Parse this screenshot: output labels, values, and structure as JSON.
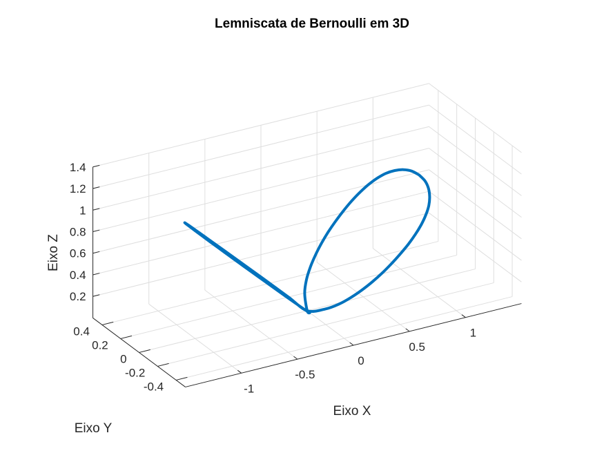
{
  "chart_data": {
    "type": "line",
    "title": "Lemniscata de Bernoulli em 3D",
    "xlabel": "Eixo X",
    "ylabel": "Eixo Y",
    "zlabel": "Eixo Z",
    "xlim": [
      -1.5,
      1.5
    ],
    "ylim": [
      -0.5,
      0.5
    ],
    "zlim": [
      0,
      1.4
    ],
    "xticks": [
      -1,
      -0.5,
      0,
      0.5,
      1
    ],
    "xtick_labels": [
      "-1",
      "-0.5",
      "0",
      "0.5",
      "1"
    ],
    "yticks": [
      -0.4,
      -0.2,
      0,
      0.2,
      0.4
    ],
    "ytick_labels": [
      "-0.4",
      "-0.2",
      "0",
      "0.2",
      "0.4"
    ],
    "zticks": [
      0.2,
      0.4,
      0.6,
      0.8,
      1,
      1.2,
      1.4
    ],
    "ztick_labels": [
      "0.2",
      "0.4",
      "0.6",
      "0.8",
      "1",
      "1.2",
      "1.4"
    ],
    "grid": true,
    "series": [
      {
        "color": "#0072bd",
        "points": [
          [
            1.0,
            0.0,
            1.0
          ],
          [
            0.993,
            0.071,
            0.993
          ],
          [
            0.971,
            0.135,
            0.971
          ],
          [
            0.937,
            0.189,
            0.937
          ],
          [
            0.893,
            0.233,
            0.893
          ],
          [
            0.84,
            0.265,
            0.84
          ],
          [
            0.78,
            0.288,
            0.78
          ],
          [
            0.715,
            0.302,
            0.715
          ],
          [
            0.646,
            0.309,
            0.646
          ],
          [
            0.575,
            0.309,
            0.575
          ],
          [
            0.502,
            0.304,
            0.502
          ],
          [
            0.429,
            0.294,
            0.429
          ],
          [
            0.356,
            0.277,
            0.356
          ],
          [
            0.284,
            0.253,
            0.284
          ],
          [
            0.212,
            0.221,
            0.212
          ],
          [
            0.14,
            0.177,
            0.14
          ],
          [
            0.07,
            0.112,
            0.07
          ],
          [
            0.0,
            0.0,
            0.0
          ],
          [
            -0.07,
            -0.112,
            0.07
          ],
          [
            -0.14,
            -0.177,
            0.14
          ],
          [
            -0.212,
            -0.221,
            0.212
          ],
          [
            -0.284,
            -0.253,
            0.284
          ],
          [
            -0.356,
            -0.277,
            0.356
          ],
          [
            -0.429,
            -0.294,
            0.429
          ],
          [
            -0.502,
            -0.304,
            0.502
          ],
          [
            -0.575,
            -0.309,
            0.575
          ],
          [
            -0.646,
            -0.309,
            0.646
          ],
          [
            -0.715,
            -0.302,
            0.715
          ],
          [
            -0.78,
            -0.288,
            0.78
          ],
          [
            -0.84,
            -0.265,
            0.84
          ],
          [
            -0.893,
            -0.233,
            0.893
          ],
          [
            -0.937,
            -0.189,
            0.937
          ],
          [
            -0.971,
            -0.135,
            0.971
          ],
          [
            -0.993,
            -0.071,
            0.993
          ],
          [
            -1.0,
            0.0,
            1.0
          ],
          [
            -0.993,
            0.071,
            0.993
          ],
          [
            -0.971,
            0.135,
            0.971
          ],
          [
            -0.937,
            0.189,
            0.937
          ],
          [
            -0.893,
            0.233,
            0.893
          ],
          [
            -0.84,
            0.265,
            0.84
          ],
          [
            -0.78,
            0.288,
            0.78
          ],
          [
            -0.715,
            0.302,
            0.715
          ],
          [
            -0.646,
            0.309,
            0.646
          ],
          [
            -0.575,
            0.309,
            0.575
          ],
          [
            -0.502,
            0.304,
            0.502
          ],
          [
            -0.429,
            0.294,
            0.429
          ],
          [
            -0.356,
            0.277,
            0.356
          ],
          [
            -0.284,
            0.253,
            0.284
          ],
          [
            -0.212,
            0.221,
            0.212
          ],
          [
            -0.14,
            0.177,
            0.14
          ],
          [
            -0.07,
            0.112,
            0.07
          ],
          [
            0.0,
            0.0,
            0.0
          ],
          [
            0.07,
            -0.112,
            0.07
          ],
          [
            0.14,
            -0.177,
            0.14
          ],
          [
            0.212,
            -0.221,
            0.212
          ],
          [
            0.284,
            -0.253,
            0.284
          ],
          [
            0.356,
            -0.277,
            0.356
          ],
          [
            0.429,
            -0.294,
            0.429
          ],
          [
            0.502,
            -0.304,
            0.502
          ],
          [
            0.575,
            -0.309,
            0.575
          ],
          [
            0.646,
            -0.309,
            0.646
          ],
          [
            0.715,
            -0.302,
            0.715
          ],
          [
            0.78,
            -0.288,
            0.78
          ],
          [
            0.84,
            -0.265,
            0.84
          ],
          [
            0.893,
            -0.233,
            0.893
          ],
          [
            0.937,
            -0.189,
            0.937
          ],
          [
            0.971,
            -0.135,
            0.971
          ],
          [
            0.993,
            -0.071,
            0.993
          ],
          [
            1.0,
            0.0,
            1.0
          ]
        ]
      }
    ]
  }
}
